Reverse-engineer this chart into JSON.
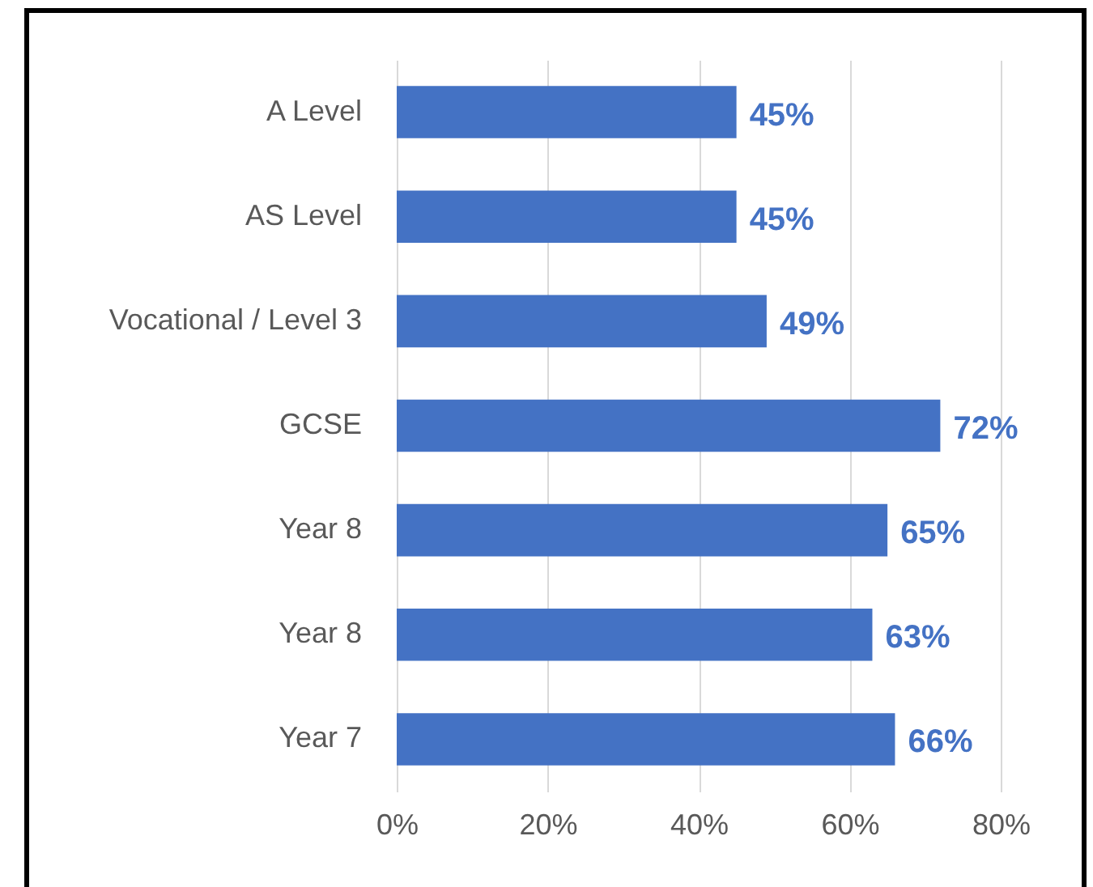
{
  "chart_data": {
    "type": "bar",
    "orientation": "horizontal",
    "categories": [
      "A Level",
      "AS Level",
      "Vocational / Level 3",
      "GCSE",
      "Year 8",
      "Year 8",
      "Year 7"
    ],
    "values": [
      45,
      45,
      49,
      72,
      65,
      63,
      66
    ],
    "value_labels": [
      "45%",
      "45%",
      "49%",
      "72%",
      "65%",
      "63%",
      "66%"
    ],
    "color": "#4472c4",
    "xlim": [
      0,
      80
    ],
    "xticks": [
      {
        "value": 0,
        "label": "0%"
      },
      {
        "value": 20,
        "label": "20%"
      },
      {
        "value": 40,
        "label": "40%"
      },
      {
        "value": 60,
        "label": "60%"
      },
      {
        "value": 80,
        "label": "80%"
      }
    ],
    "grid": "x"
  }
}
